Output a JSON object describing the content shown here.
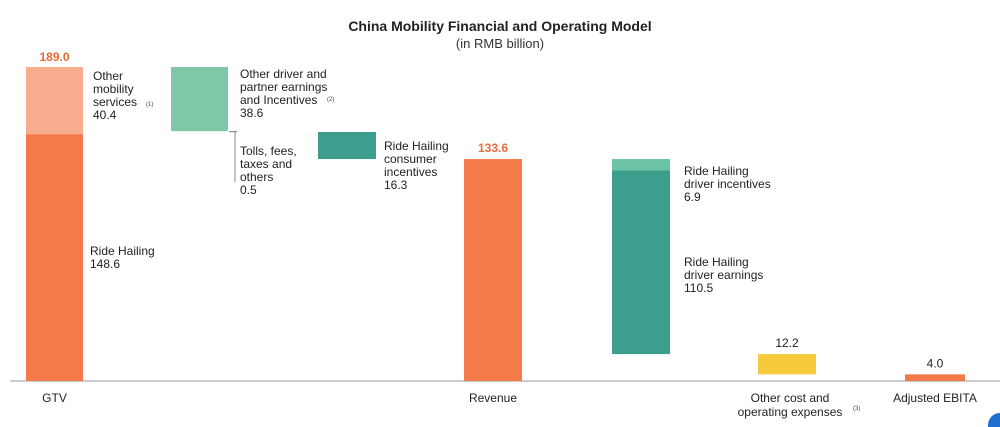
{
  "chart_data": {
    "type": "waterfall",
    "title": "China Mobility Financial and Operating Model",
    "subtitle": "(in RMB billion)",
    "ylim": [
      0,
      189.0
    ],
    "colors": {
      "gtv_base": "#f47a4a",
      "gtv_top": "#f8ae8e",
      "partner": "#7ec8a8",
      "consumer": "#3d9e8d",
      "driver_incentives": "#6cc4a4",
      "driver_earnings": "#3d9e8d",
      "revenue": "#f47a4a",
      "other_cost": "#f7c93d",
      "ebita": "#f47a4a",
      "accent_text": "#e8693a"
    },
    "bars": {
      "gtv": {
        "category": "GTV",
        "total_label": "189.0",
        "segments": [
          {
            "name": "Ride Hailing",
            "value": 148.6,
            "label_lines": [
              "Ride Hailing",
              "148.6"
            ]
          },
          {
            "name": "Other mobility services",
            "value": 40.4,
            "label_lines": [
              "Other",
              "mobility",
              "services",
              "40.4"
            ],
            "note": "(1)"
          }
        ]
      },
      "partner": {
        "name": "Other driver and partner earnings and Incentives",
        "value": 38.6,
        "label_lines": [
          "Other driver and",
          "partner earnings",
          "and Incentives",
          "38.6"
        ],
        "note": "(2)"
      },
      "tolls": {
        "name": "Tolls, fees, taxes and others",
        "value": 0.5,
        "label_lines": [
          "Tolls, fees,",
          "taxes and",
          "others",
          "0.5"
        ]
      },
      "consumer": {
        "name": "Ride Hailing consumer incentives",
        "value": 16.3,
        "label_lines": [
          "Ride Hailing",
          "consumer",
          "incentives",
          "16.3"
        ]
      },
      "revenue": {
        "category": "Revenue",
        "value": 133.6,
        "total_label": "133.6"
      },
      "driver": {
        "segments": [
          {
            "name": "Ride Hailing driver incentives",
            "value": 6.9,
            "label_lines": [
              "Ride Hailing",
              "driver incentives",
              "6.9"
            ]
          },
          {
            "name": "Ride Hailing driver earnings",
            "value": 110.5,
            "label_lines": [
              "Ride Hailing",
              "driver earnings",
              "110.5"
            ]
          }
        ]
      },
      "other_cost": {
        "category_lines": [
          "Other cost and",
          "operating expenses"
        ],
        "note": "(3)",
        "value": 12.2,
        "total_label": "12.2"
      },
      "ebita": {
        "category": "Adjusted EBITA",
        "value": 4.0,
        "total_label": "4.0"
      }
    }
  }
}
